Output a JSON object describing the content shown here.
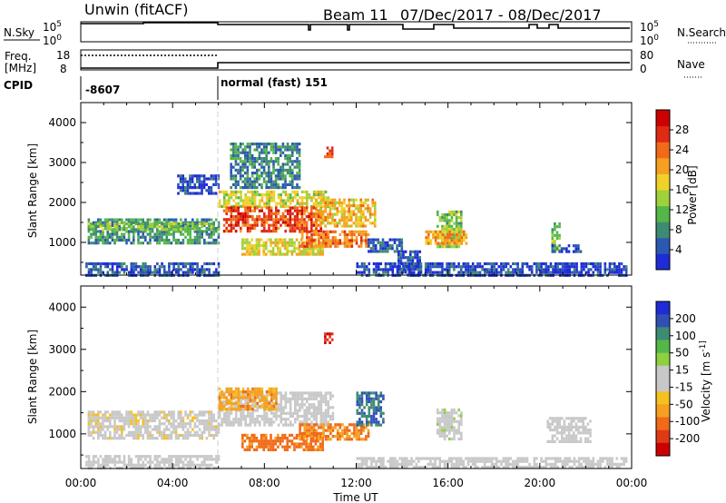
{
  "header": {
    "station": "Unwin (fitACF)",
    "beam": "Beam 11",
    "date_range": "07/Dec/2017 - 08/Dec/2017"
  },
  "nsky_panel": {
    "left_label": "N.Sky",
    "left_ticks": [
      "10^5",
      "10^0"
    ],
    "right_ticks": [
      "10^5",
      "10^0"
    ],
    "right_label": "N.Search"
  },
  "freq_panel": {
    "left_label_1": "Freq.",
    "left_label_2": "[MHz]",
    "left_ticks": [
      "18",
      "8"
    ],
    "right_ticks": [
      "80",
      "0"
    ],
    "right_label": "Nave"
  },
  "cpid_panel": {
    "label": "CPID",
    "segments": [
      {
        "text": "-8607",
        "start_hour": 0,
        "end_hour": 6
      },
      {
        "text": "normal (fast) 151",
        "start_hour": 6,
        "end_hour": 24
      }
    ]
  },
  "chart_data": [
    {
      "type": "heatmap",
      "name": "power",
      "ylabel": "Slant Range [km]",
      "ylim": [
        180,
        4500
      ],
      "yticks": [
        1000,
        2000,
        3000,
        4000
      ],
      "colorbar_label": "Power [dB]",
      "colorbar_ticks": [
        "4",
        "8",
        "12",
        "16",
        "20",
        "24",
        "28"
      ],
      "colorbar_colors": [
        "#1e2bd6",
        "#2b58b0",
        "#3f8a72",
        "#55b64a",
        "#9fd13b",
        "#f0d12a",
        "#f5a020",
        "#f06a18",
        "#e02a14",
        "#cc0000"
      ],
      "blobs": [
        {
          "t0": 0.3,
          "t1": 6.0,
          "r0": 1000,
          "r1": 1600,
          "v": 10
        },
        {
          "t0": 0.3,
          "t1": 6.0,
          "r0": 1350,
          "r1": 1500,
          "v": 14
        },
        {
          "t0": 0.2,
          "t1": 6.0,
          "r0": 200,
          "r1": 500,
          "v": 6
        },
        {
          "t0": 4.2,
          "t1": 6.0,
          "r0": 2200,
          "r1": 2700,
          "v": 5
        },
        {
          "t0": 6.0,
          "t1": 10.8,
          "r0": 1900,
          "r1": 2300,
          "v": 17
        },
        {
          "t0": 6.2,
          "t1": 10.5,
          "r0": 1300,
          "r1": 1900,
          "v": 26
        },
        {
          "t0": 6.5,
          "t1": 9.5,
          "r0": 2400,
          "r1": 3500,
          "v": 9
        },
        {
          "t0": 7.0,
          "t1": 10.5,
          "r0": 700,
          "r1": 1100,
          "v": 18
        },
        {
          "t0": 9.5,
          "t1": 12.5,
          "r0": 900,
          "r1": 1300,
          "v": 24
        },
        {
          "t0": 10.2,
          "t1": 12.8,
          "r0": 1400,
          "r1": 2100,
          "v": 20
        },
        {
          "t0": 10.6,
          "t1": 11.0,
          "r0": 3150,
          "r1": 3400,
          "v": 26
        },
        {
          "t0": 12.5,
          "t1": 14.0,
          "r0": 800,
          "r1": 1100,
          "v": 7
        },
        {
          "t0": 13.8,
          "t1": 14.8,
          "r0": 200,
          "r1": 800,
          "v": 6
        },
        {
          "t0": 15.5,
          "t1": 16.6,
          "r0": 900,
          "r1": 1800,
          "v": 14
        },
        {
          "t0": 15.0,
          "t1": 16.8,
          "r0": 1000,
          "r1": 1300,
          "v": 22
        },
        {
          "t0": 20.5,
          "t1": 20.9,
          "r0": 800,
          "r1": 1500,
          "v": 14
        },
        {
          "t0": 20.5,
          "t1": 21.8,
          "r0": 750,
          "r1": 950,
          "v": 6
        },
        {
          "t0": 12.0,
          "t1": 23.8,
          "r0": 200,
          "r1": 500,
          "v": 5
        }
      ]
    },
    {
      "type": "heatmap",
      "name": "velocity",
      "ylabel": "Slant Range [km]",
      "ylim": [
        180,
        4500
      ],
      "yticks": [
        1000,
        2000,
        3000,
        4000
      ],
      "xlabel": "Time UT",
      "xlim": [
        0,
        24
      ],
      "xticks": [
        "00:00",
        "04:00",
        "08:00",
        "12:00",
        "16:00",
        "20:00",
        "00:00"
      ],
      "colorbar_label": "Velocity [m s^-1]",
      "colorbar_ticks": [
        "200",
        "100",
        "50",
        "15",
        "-15",
        "-50",
        "-100",
        "-200"
      ],
      "colorbar_colors": [
        "#1e2bd6",
        "#3050b8",
        "#3f8a72",
        "#55b64a",
        "#8ed040",
        "#c8c8c8",
        "#c8c8c8",
        "#f5c020",
        "#f5a020",
        "#f06a18",
        "#e03a14",
        "#cc0000"
      ],
      "blobs": [
        {
          "t0": 0.3,
          "t1": 6.0,
          "r0": 900,
          "r1": 1550,
          "v": -5
        },
        {
          "t0": 0.2,
          "t1": 6.0,
          "r0": 200,
          "r1": 500,
          "v": 20
        },
        {
          "t0": 6.0,
          "t1": 11.0,
          "r0": 1200,
          "r1": 2000,
          "v": 0
        },
        {
          "t0": 6.0,
          "t1": 8.5,
          "r0": 1600,
          "r1": 2100,
          "v": -40
        },
        {
          "t0": 7.0,
          "t1": 10.5,
          "r0": 650,
          "r1": 1000,
          "v": -60
        },
        {
          "t0": 9.5,
          "t1": 12.5,
          "r0": 900,
          "r1": 1250,
          "v": -50
        },
        {
          "t0": 10.6,
          "t1": 11.0,
          "r0": 3150,
          "r1": 3400,
          "v": -150
        },
        {
          "t0": 12.0,
          "t1": 13.2,
          "r0": 1200,
          "r1": 2000,
          "v": 150
        },
        {
          "t0": 15.5,
          "t1": 16.6,
          "r0": 900,
          "r1": 1600,
          "v": 40
        },
        {
          "t0": 20.3,
          "t1": 22.2,
          "r0": 800,
          "r1": 1400,
          "v": 0
        },
        {
          "t0": 12.0,
          "t1": 23.8,
          "r0": 200,
          "r1": 450,
          "v": 30
        }
      ]
    }
  ]
}
